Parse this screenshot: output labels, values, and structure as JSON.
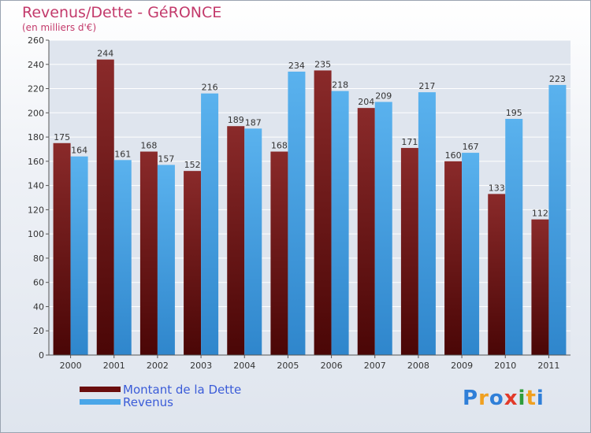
{
  "title": "Revenus/Dette - GéRONCE",
  "subtitle": "(en milliers d'€)",
  "logo": {
    "text": "Proxiti",
    "letters": [
      "P",
      "r",
      "o",
      "x",
      "i",
      "t",
      "i"
    ],
    "colors": [
      "#2f7fd8",
      "#f0a020",
      "#2f7fd8",
      "#e23a2a",
      "#2f9c3a",
      "#f0a020",
      "#2f7fd8"
    ]
  },
  "colors": {
    "dette": "#7a1a1a",
    "revenus": "#4aa6e8",
    "title": "#c33a6b",
    "legend_text": "#3b5cd8"
  },
  "chart_data": {
    "type": "bar",
    "title": "Revenus/Dette - GéRONCE",
    "ylabel": "(en milliers d'€)",
    "xlabel": "",
    "categories": [
      "2000",
      "2001",
      "2002",
      "2003",
      "2004",
      "2005",
      "2006",
      "2007",
      "2008",
      "2009",
      "2010",
      "2011"
    ],
    "series": [
      {
        "name": "Montant de la Dette",
        "values": [
          175,
          244,
          168,
          152,
          189,
          168,
          235,
          204,
          171,
          160,
          133,
          112
        ]
      },
      {
        "name": "Revenus",
        "values": [
          164,
          161,
          157,
          216,
          187,
          234,
          218,
          209,
          217,
          167,
          195,
          223
        ]
      }
    ],
    "ylim": [
      0,
      260
    ],
    "yticks": [
      0,
      20,
      40,
      60,
      80,
      100,
      120,
      140,
      160,
      180,
      200,
      220,
      240,
      260
    ],
    "grid": true,
    "legend": "bottom-left"
  }
}
